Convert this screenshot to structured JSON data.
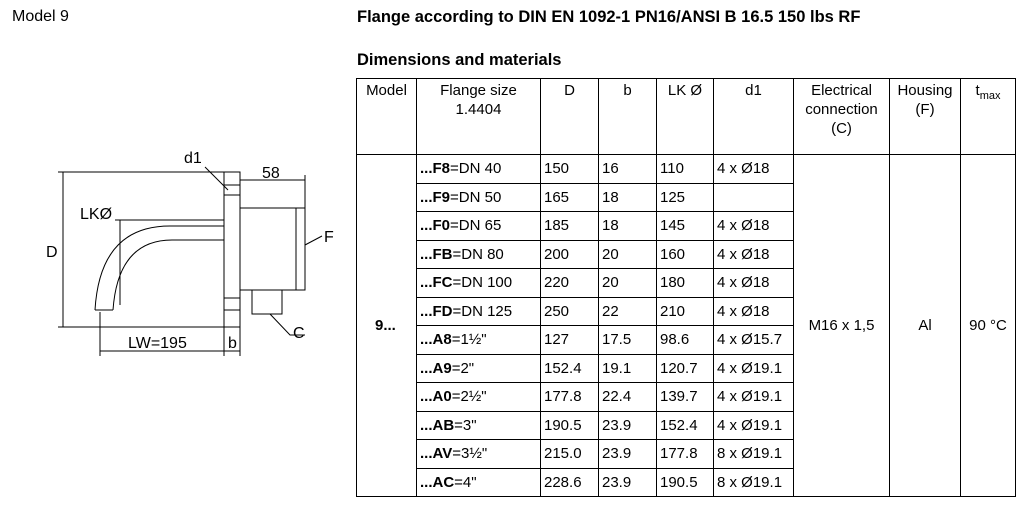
{
  "header": {
    "model": "Model 9",
    "title": "Flange according to DIN EN 1092-1 PN16/ANSI B 16.5 150 lbs RF",
    "subtitle": "Dimensions and materials"
  },
  "drawing": {
    "d1": "d1",
    "width": "58",
    "lk": "LKØ",
    "d": "D",
    "f": "F",
    "c": "C",
    "lw": "LW=195",
    "b": "b"
  },
  "table": {
    "columns": [
      "Model",
      "Flange size",
      "D",
      "b",
      "LK Ø",
      "d1",
      "Electrical connection (C)",
      "Housing (F)",
      "t"
    ],
    "flange_material": "1.4404",
    "tmax_sub": "max",
    "model": "9...",
    "electrical": "M16 x 1,5",
    "housing": "Al",
    "tmax": "90 °C",
    "rows": [
      [
        "...F8",
        "=DN 40",
        "150",
        "16",
        "110",
        "4 x Ø18"
      ],
      [
        "...F9",
        "=DN 50",
        "165",
        "18",
        "125"
      ],
      [
        "...F0",
        "=DN 65",
        "185",
        "18",
        "145",
        "4 x Ø18"
      ],
      [
        "...FB",
        "=DN 80",
        "200",
        "20",
        "160",
        "4 x Ø18"
      ],
      [
        "...FC",
        "=DN 100",
        "220",
        "20",
        "180",
        "4 x Ø18"
      ],
      [
        "...FD",
        "=DN 125",
        "250",
        "22",
        "210",
        "4 x Ø18"
      ],
      [
        "...A8",
        "=1½\"",
        "127",
        "17.5",
        "98.6",
        "4 x Ø15.7"
      ],
      [
        "...A9",
        "=2\"",
        "152.4",
        "19.1",
        "120.7",
        "4 x Ø19.1"
      ],
      [
        "...A0",
        "=2½\"",
        "177.8",
        "22.4",
        "139.7",
        "4 x Ø19.1"
      ],
      [
        "...AB",
        "=3\"",
        "190.5",
        "23.9",
        "152.4",
        "4 x Ø19.1"
      ],
      [
        "...AV",
        "=3½\"",
        "215.0",
        "23.9",
        "177.8",
        "8 x Ø19.1"
      ],
      [
        "...AC",
        "=4\"",
        "228.6",
        "23.9",
        "190.5",
        "8 x Ø19.1"
      ]
    ]
  }
}
